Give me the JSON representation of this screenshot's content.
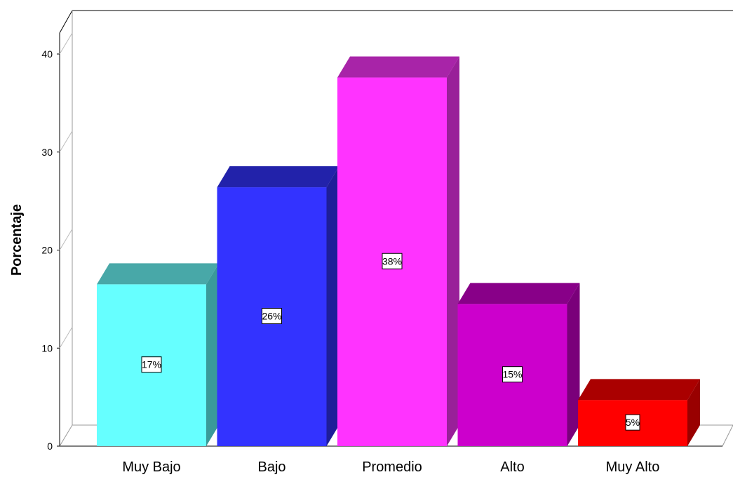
{
  "chart_data": {
    "type": "bar",
    "title": "",
    "xlabel": "",
    "ylabel": "Porcentaje",
    "ylim": [
      0,
      40
    ],
    "yticks": [
      "0",
      "10",
      "20",
      "30",
      "40"
    ],
    "categories": [
      "Muy Bajo",
      "Bajo",
      "Promedio",
      "Alto",
      "Muy Alto"
    ],
    "values": [
      16.5,
      26.4,
      37.6,
      14.5,
      4.7
    ],
    "data_labels": [
      "17%",
      "26%",
      "38%",
      "15%",
      "5%"
    ],
    "colors": [
      "#66ffff",
      "#3333ff",
      "#ff33ff",
      "#cc00cc",
      "#ff0000"
    ],
    "side_colors": [
      "#3a9a9a",
      "#1e1e99",
      "#992099",
      "#7a007a",
      "#990000"
    ],
    "top_colors": [
      "#48a8a8",
      "#2222aa",
      "#a824a8",
      "#880088",
      "#aa0000"
    ],
    "grid": false,
    "style": "3d"
  }
}
